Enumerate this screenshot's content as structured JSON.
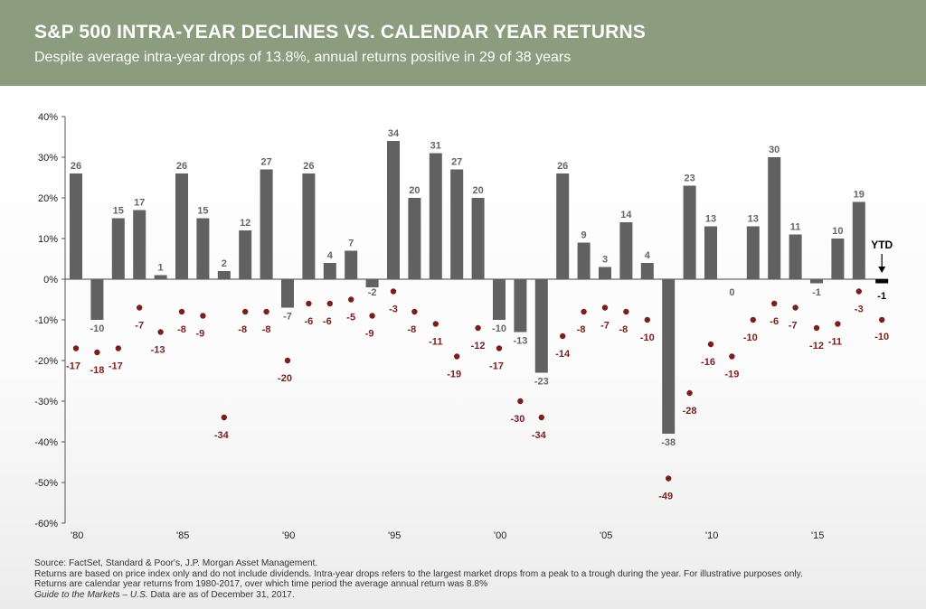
{
  "header": {
    "title": "S&P 500 INTRA-YEAR DECLINES VS. CALENDAR YEAR RETURNS",
    "subtitle": "Despite average intra-year drops of 13.8%, annual returns positive in 29 of 38 years"
  },
  "colors": {
    "header_bg": "#8b9c7f",
    "bar": "#616161",
    "decline_dot": "#7a1f1f",
    "ytd_bar": "#000000"
  },
  "chart_data": {
    "type": "bar",
    "title": "",
    "ylabel": "",
    "xlabel": "",
    "ylim": [
      -60,
      40
    ],
    "yticks": [
      "40%",
      "30%",
      "20%",
      "10%",
      "0%",
      "-10%",
      "-20%",
      "-30%",
      "-40%",
      "-50%",
      "-60%"
    ],
    "ytick_values": [
      40,
      30,
      20,
      10,
      0,
      -10,
      -20,
      -30,
      -40,
      -50,
      -60
    ],
    "xtick_labels": [
      {
        "year": 1980,
        "label": "'80"
      },
      {
        "year": 1985,
        "label": "'85"
      },
      {
        "year": 1990,
        "label": "'90"
      },
      {
        "year": 1995,
        "label": "'95"
      },
      {
        "year": 2000,
        "label": "'00"
      },
      {
        "year": 2005,
        "label": "'05"
      },
      {
        "year": 2010,
        "label": "'10"
      },
      {
        "year": 2015,
        "label": "'15"
      }
    ],
    "years": [
      1980,
      1981,
      1982,
      1983,
      1984,
      1985,
      1986,
      1987,
      1988,
      1989,
      1990,
      1991,
      1992,
      1993,
      1994,
      1995,
      1996,
      1997,
      1998,
      1999,
      2000,
      2001,
      2002,
      2003,
      2004,
      2005,
      2006,
      2007,
      2008,
      2009,
      2010,
      2011,
      2012,
      2013,
      2014,
      2015,
      2016,
      2017
    ],
    "series": [
      {
        "key": "annual_returns",
        "values": [
          26,
          -10,
          15,
          17,
          1,
          26,
          15,
          2,
          12,
          27,
          -7,
          26,
          4,
          7,
          -2,
          34,
          20,
          31,
          27,
          20,
          -10,
          -13,
          -23,
          26,
          9,
          3,
          14,
          4,
          -38,
          23,
          13,
          0,
          13,
          30,
          11,
          -1,
          10,
          19
        ],
        "labels": [
          "26",
          "-10",
          "15",
          "17",
          "1",
          "26",
          "15",
          "2",
          "12",
          "27",
          "-7",
          "26",
          "4",
          "7",
          "-2",
          "34",
          "20",
          "31",
          "27",
          "20",
          "-10",
          "-13",
          "-23",
          "26",
          "9",
          "3",
          "14",
          "4",
          "-38",
          "23",
          "13",
          "0",
          "13",
          "30",
          "11",
          "-1",
          "10",
          "19"
        ]
      },
      {
        "key": "intra_year_declines",
        "values": [
          -17,
          -18,
          -17,
          -7,
          -13,
          -8,
          -9,
          -34,
          -8,
          -8,
          -20,
          -6,
          -6,
          -5,
          -9,
          -3,
          -8,
          -11,
          -19,
          -12,
          -17,
          -30,
          -34,
          -14,
          -8,
          -7,
          -8,
          -10,
          -49,
          -28,
          -16,
          -19,
          -10,
          -6,
          -7,
          -12,
          -11,
          -3
        ],
        "labels": [
          "-17",
          "-18",
          "-17",
          "-7",
          "-13",
          "-8",
          "-9",
          "-34",
          "-8",
          "-8",
          "-20",
          "-6",
          "-6",
          "-5",
          "-9",
          "-3",
          "-8",
          "-11",
          "-19",
          "-12",
          "-17",
          "-30",
          "-34",
          "-14",
          "-8",
          "-7",
          "-8",
          "-10",
          "-49",
          "-28",
          "-16",
          "-19",
          "-10",
          "-6",
          "-7",
          "-12",
          "-11",
          "-3"
        ]
      }
    ],
    "ytd": {
      "label": "YTD",
      "return_value": -1,
      "return_label": "-1",
      "decline_value": -10,
      "decline_label": "-10"
    }
  },
  "footer": {
    "line1": "Source: FactSet, Standard & Poor's, J.P. Morgan Asset Management.",
    "line2": "Returns are based on price index only and do not include dividends. Intra-year drops refers to the largest market drops from a peak to a trough during the year. For illustrative purposes only.",
    "line3": "Returns are calendar year returns from 1980-2017, over which time period the average annual return was 8.8%",
    "line4_italic": "Guide to the Markets – U.S.",
    "line4_rest": " Data are as of December 31, 2017."
  }
}
